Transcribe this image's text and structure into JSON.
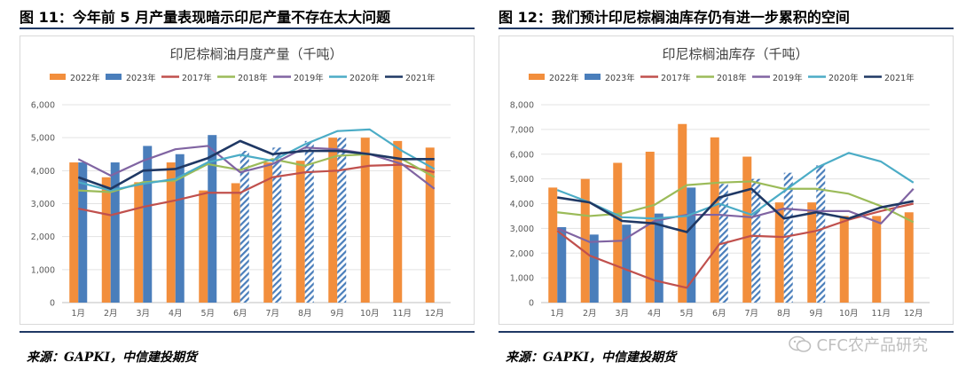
{
  "figures": [
    {
      "fig_title": "图 11：今年前 5 月产量表现暗示印尼产量不存在太大问题",
      "source": "来源：GAPKI，中信建投期货"
    },
    {
      "fig_title": "图 12：我们预计印尼棕榈油库存仍有进一步累积的空间",
      "source": "来源：GAPKI，中信建投期货"
    }
  ],
  "watermark": "CFC农产品研究",
  "colors": {
    "y2022": "#f28e3c",
    "y2023": "#4a7ebb",
    "y2017": "#c0504d",
    "y2018": "#9bbb59",
    "y2019": "#8064a2",
    "y2020": "#4bacc6",
    "y2021": "#1f3864"
  },
  "chart_data": [
    {
      "type": "bar",
      "title": "印尼棕榈油月度产量（千吨）",
      "categories": [
        "1月",
        "2月",
        "3月",
        "4月",
        "5月",
        "6月",
        "7月",
        "8月",
        "9月",
        "10月",
        "11月",
        "12月"
      ],
      "ylim": [
        0,
        6000
      ],
      "yticks": [
        "0",
        "1,000",
        "2,000",
        "3,000",
        "4,000",
        "5,000",
        "6,000"
      ],
      "grid": true,
      "legend_position": "top",
      "bar_series": [
        {
          "name": "2022年",
          "color_key": "y2022",
          "values": [
            4250,
            3800,
            3650,
            4250,
            3400,
            3620,
            4250,
            4300,
            5000,
            5000,
            4900,
            4700
          ],
          "forecast_from": 99
        },
        {
          "name": "2023年",
          "color_key": "y2023",
          "values": [
            4250,
            4250,
            4750,
            4500,
            5080,
            4600,
            4700,
            4900,
            5000,
            null,
            null,
            null
          ],
          "forecast_from": 5
        }
      ],
      "line_series": [
        {
          "name": "2017年",
          "color_key": "y2017",
          "values": [
            2850,
            2650,
            2900,
            3100,
            3330,
            3330,
            3800,
            3950,
            4000,
            4150,
            4180,
            3950
          ]
        },
        {
          "name": "2018年",
          "color_key": "y2018",
          "values": [
            3400,
            3350,
            3650,
            3700,
            4200,
            4020,
            4350,
            4150,
            4450,
            4500,
            4350,
            3800
          ]
        },
        {
          "name": "2019年",
          "color_key": "y2019",
          "values": [
            4350,
            3850,
            4300,
            4650,
            4750,
            3950,
            4200,
            4700,
            4650,
            4500,
            4200,
            3450
          ]
        },
        {
          "name": "2020年",
          "color_key": "y2020",
          "values": [
            3650,
            3400,
            3600,
            3750,
            4250,
            4480,
            4300,
            4800,
            5200,
            5250,
            4600,
            4050
          ]
        },
        {
          "name": "2021年",
          "color_key": "y2021",
          "values": [
            3800,
            3450,
            4000,
            4050,
            4380,
            4900,
            4500,
            4600,
            4600,
            4500,
            4350,
            4350
          ]
        }
      ]
    },
    {
      "type": "bar",
      "title": "印尼棕榈油库存（千吨）",
      "categories": [
        "1月",
        "2月",
        "3月",
        "4月",
        "5月",
        "6月",
        "7月",
        "8月",
        "9月",
        "10月",
        "11月",
        "12月"
      ],
      "ylim": [
        0,
        8000
      ],
      "yticks": [
        "0",
        "1,000",
        "2,000",
        "3,000",
        "4,000",
        "5,000",
        "6,000",
        "7,000",
        "8,000"
      ],
      "grid": true,
      "legend_position": "top",
      "bar_series": [
        {
          "name": "2022年",
          "color_key": "y2022",
          "values": [
            4650,
            5000,
            5650,
            6100,
            7220,
            6680,
            5900,
            4050,
            4050,
            3500,
            3500,
            3650
          ],
          "forecast_from": 99
        },
        {
          "name": "2023年",
          "color_key": "y2023",
          "values": [
            3050,
            2750,
            3150,
            3600,
            4650,
            4800,
            5000,
            5250,
            5550,
            null,
            null,
            null
          ],
          "forecast_from": 5
        }
      ],
      "line_series": [
        {
          "name": "2017年",
          "color_key": "y2017",
          "values": [
            2900,
            1900,
            1400,
            900,
            600,
            2350,
            2700,
            2650,
            2900,
            3350,
            3700,
            4000
          ]
        },
        {
          "name": "2018年",
          "color_key": "y2018",
          "values": [
            3650,
            3500,
            3600,
            3950,
            4750,
            4850,
            4900,
            4600,
            4600,
            4400,
            3900,
            3250
          ]
        },
        {
          "name": "2019年",
          "color_key": "y2019",
          "values": [
            3000,
            2450,
            2500,
            3300,
            3550,
            3550,
            3450,
            3800,
            3700,
            3700,
            3200,
            4600
          ]
        },
        {
          "name": "2020年",
          "color_key": "y2020",
          "values": [
            4550,
            4050,
            3450,
            3400,
            3500,
            4000,
            3550,
            4500,
            5450,
            6050,
            5700,
            4850
          ]
        },
        {
          "name": "2021年",
          "color_key": "y2021",
          "values": [
            4250,
            4050,
            3300,
            3200,
            2850,
            4250,
            4600,
            3400,
            3650,
            3400,
            3850,
            4100
          ]
        }
      ]
    }
  ]
}
